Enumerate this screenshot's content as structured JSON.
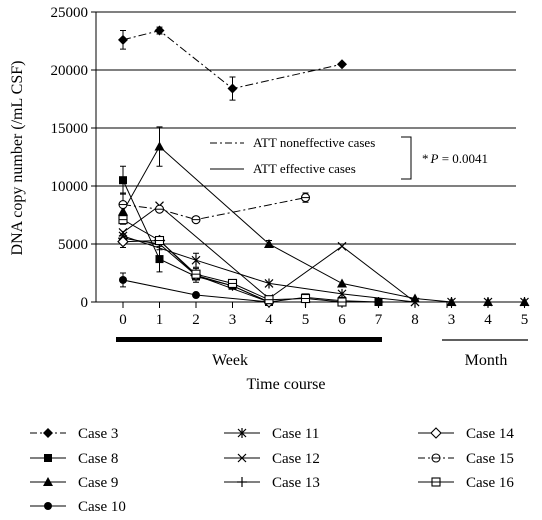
{
  "chart_data": {
    "type": "line",
    "ylabel": "DNA copy number (/mL CSF)",
    "xlabel": "Time course",
    "ylim": [
      0,
      25000
    ],
    "yticks": [
      0,
      5000,
      10000,
      15000,
      20000,
      25000
    ],
    "ytick_labels": [
      "0",
      "5000",
      "10000",
      "15000",
      "20000",
      "25000"
    ],
    "grid": "horizontal",
    "x_groups": [
      {
        "label": "Week",
        "ticks": [
          "0",
          "1",
          "2",
          "3",
          "4",
          "5",
          "6",
          "7",
          "8"
        ]
      },
      {
        "label": "Month",
        "ticks": [
          "3",
          "4",
          "5"
        ]
      }
    ],
    "annotations": {
      "noneffective_label": "ATT noneffective cases",
      "effective_label": "ATT effective cases",
      "p_prefix": "*",
      "p_symbol": "P",
      "p_value": " = 0.0041"
    },
    "legend_position": "bottom",
    "series": [
      {
        "name": "Case 3",
        "marker": "diamond-filled",
        "dash": "dashdot",
        "x": [
          0,
          1,
          3,
          6
        ],
        "y": [
          22600,
          23400,
          18400,
          20500
        ],
        "err": [
          800,
          300,
          1000,
          0
        ]
      },
      {
        "name": "Case 8",
        "marker": "square-filled",
        "dash": "solid",
        "x": [
          0,
          1,
          2,
          3,
          4,
          5,
          6,
          7
        ],
        "y": [
          10500,
          3700,
          2200,
          1400,
          0,
          400,
          100,
          0
        ],
        "err": [
          1200,
          1100,
          0,
          0,
          0,
          0,
          0,
          0
        ]
      },
      {
        "name": "Case 9",
        "marker": "triangle-filled",
        "dash": "solid",
        "x": [
          0,
          1,
          4,
          6,
          8,
          9,
          10,
          11
        ],
        "y": [
          7800,
          13400,
          5000,
          1600,
          300,
          0,
          0,
          0
        ],
        "err": [
          0,
          1700,
          300,
          0,
          0,
          0,
          0,
          0
        ]
      },
      {
        "name": "Case 10",
        "marker": "circle-filled",
        "dash": "solid",
        "x": [
          0,
          2,
          4
        ],
        "y": [
          1900,
          600,
          0
        ],
        "err": [
          600,
          0,
          0
        ]
      },
      {
        "name": "Case 11",
        "marker": "star",
        "dash": "solid",
        "x": [
          0,
          2,
          4,
          6,
          8,
          9,
          10,
          11
        ],
        "y": [
          5700,
          3600,
          1600,
          700,
          0,
          0,
          0,
          0
        ],
        "err": [
          0,
          600,
          0,
          0,
          0,
          0,
          0,
          0
        ]
      },
      {
        "name": "Case 12",
        "marker": "x",
        "dash": "solid",
        "x": [
          0,
          1,
          4,
          6,
          8
        ],
        "y": [
          6000,
          8300,
          300,
          4800,
          0
        ],
        "err": [
          0,
          0,
          0,
          0,
          0
        ]
      },
      {
        "name": "Case 13",
        "marker": "plus",
        "dash": "solid",
        "x": [
          0,
          1,
          2,
          3,
          4,
          5,
          6,
          7
        ],
        "y": [
          5500,
          5000,
          2300,
          1400,
          0,
          0,
          0,
          0
        ],
        "err": [
          0,
          500,
          600,
          0,
          0,
          0,
          0,
          0
        ]
      },
      {
        "name": "Case 14",
        "marker": "diamond-open",
        "dash": "solid",
        "x": [
          0,
          1,
          2,
          4
        ],
        "y": [
          5200,
          5300,
          2300,
          0
        ],
        "err": [
          500,
          0,
          0,
          0
        ]
      },
      {
        "name": "Case 15",
        "marker": "circle-open",
        "dash": "dashdot",
        "x": [
          0,
          1,
          2,
          5
        ],
        "y": [
          8400,
          8000,
          7100,
          9000
        ],
        "err": [
          1000,
          0,
          0,
          400
        ]
      },
      {
        "name": "Case 16",
        "marker": "square-open",
        "dash": "solid",
        "x": [
          0,
          1,
          2,
          3,
          4,
          5,
          6
        ],
        "y": [
          7100,
          5300,
          2400,
          1600,
          200,
          300,
          0
        ],
        "err": [
          400,
          0,
          0,
          0,
          0,
          0,
          0
        ]
      }
    ]
  }
}
